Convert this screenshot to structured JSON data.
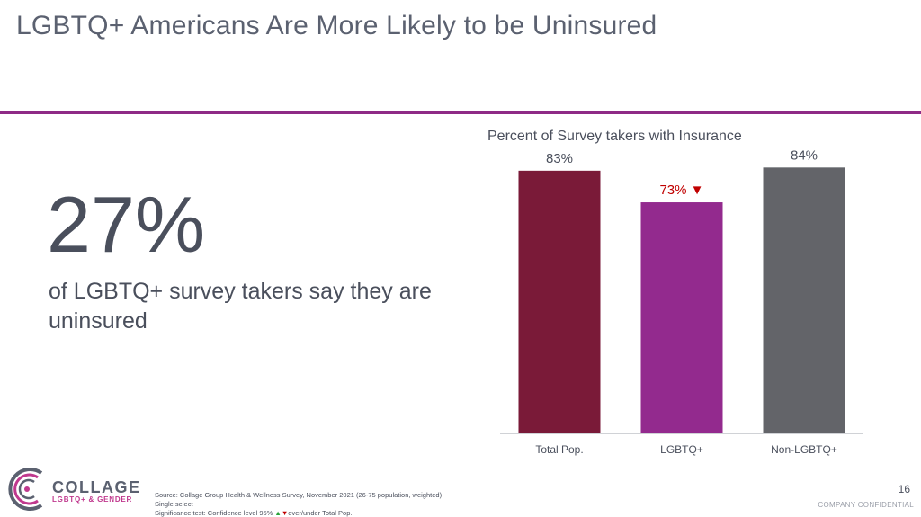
{
  "slide": {
    "title": "LGBTQ+ Americans Are More Likely to be Uninsured",
    "accent_color": "#8e2a86",
    "page_number": "16",
    "confidential": "COMPANY CONFIDENTIAL"
  },
  "stat": {
    "value": "27%",
    "text": "of LGBTQ+ survey takers say they are uninsured"
  },
  "logo": {
    "word": "COLLAGE",
    "subtitle": "LGBTQ+ & GENDER"
  },
  "footnotes": {
    "source": "Source: Collage Group Health & Wellness Survey, November 2021 (26-75 population, weighted)",
    "select": "Single select",
    "sig_prefix": "Significance test: Confidence level 95%",
    "sig_up_icon": "▲",
    "sig_down_icon": "▼",
    "sig_suffix": "over/under Total Pop."
  },
  "chart_data": {
    "type": "bar",
    "title": "Percent of Survey takers with Insurance",
    "categories": [
      "Total Pop.",
      "LGBTQ+",
      "Non-LGBTQ+"
    ],
    "values": [
      83,
      73,
      84
    ],
    "value_labels": [
      "83%",
      "73% ▼",
      "84%"
    ],
    "colors": [
      "#7a1a38",
      "#932a8e",
      "#636469"
    ],
    "label_colors": [
      "#4a4f5c",
      "#c00000",
      "#4a4f5c"
    ],
    "ylim": [
      0,
      100
    ],
    "xlabel": "",
    "ylabel": "",
    "grid": false,
    "legend": "none"
  }
}
